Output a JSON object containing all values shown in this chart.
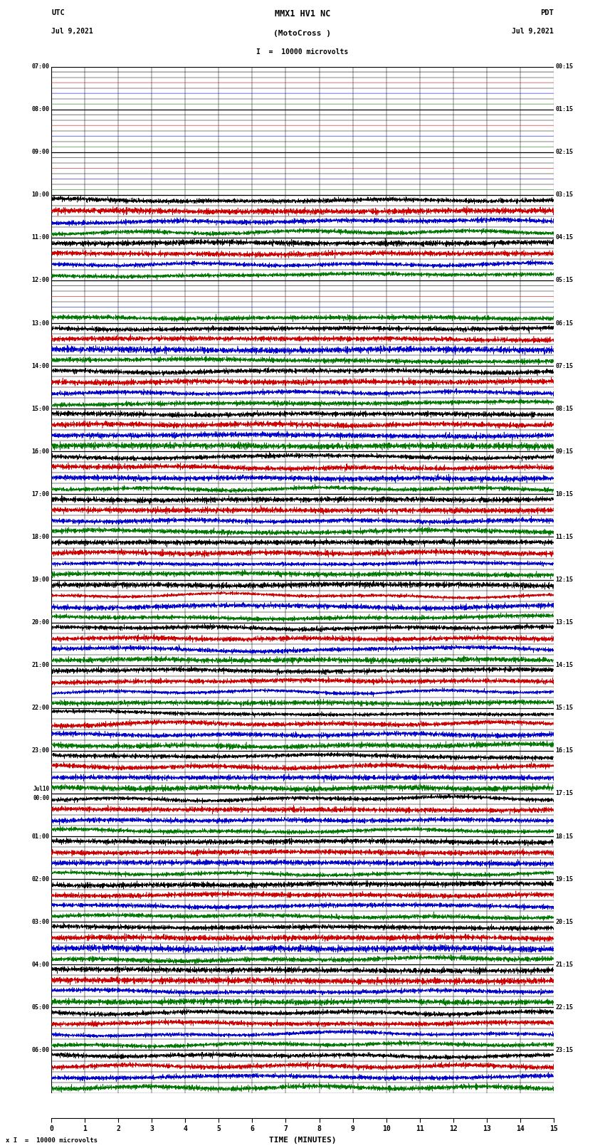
{
  "title_line1": "MMX1 HV1 NC",
  "title_line2": "(MotoCross )",
  "left_header": "UTC",
  "right_header": "PDT",
  "left_date": "Jul 9,2021",
  "right_date": "Jul 9,2021",
  "scale_text": "I  =  10000 microvolts",
  "bottom_label": "TIME (MINUTES)",
  "bottom_note": "x I  =  10000 microvolts",
  "utc_labels": [
    "07:00",
    "08:00",
    "09:00",
    "10:00",
    "11:00",
    "12:00",
    "13:00",
    "14:00",
    "15:00",
    "16:00",
    "17:00",
    "18:00",
    "19:00",
    "20:00",
    "21:00",
    "22:00",
    "23:00",
    "Jul10\n00:00",
    "01:00",
    "02:00",
    "03:00",
    "04:00",
    "05:00",
    "06:00"
  ],
  "pdt_labels": [
    "00:15",
    "01:15",
    "02:15",
    "03:15",
    "04:15",
    "05:15",
    "06:15",
    "07:15",
    "08:15",
    "09:15",
    "10:15",
    "11:15",
    "12:15",
    "13:15",
    "14:15",
    "15:15",
    "16:15",
    "17:15",
    "18:15",
    "19:15",
    "20:15",
    "21:15",
    "22:15",
    "23:15"
  ],
  "n_rows": 24,
  "n_traces_per_row": 4,
  "trace_colors": [
    "#000000",
    "#cc0000",
    "#0000cc",
    "#007700"
  ],
  "x_ticks": [
    0,
    1,
    2,
    3,
    4,
    5,
    6,
    7,
    8,
    9,
    10,
    11,
    12,
    13,
    14,
    15
  ],
  "bg_color": "#ffffff",
  "grid_color": "#888888",
  "fig_width": 8.5,
  "fig_height": 16.13
}
